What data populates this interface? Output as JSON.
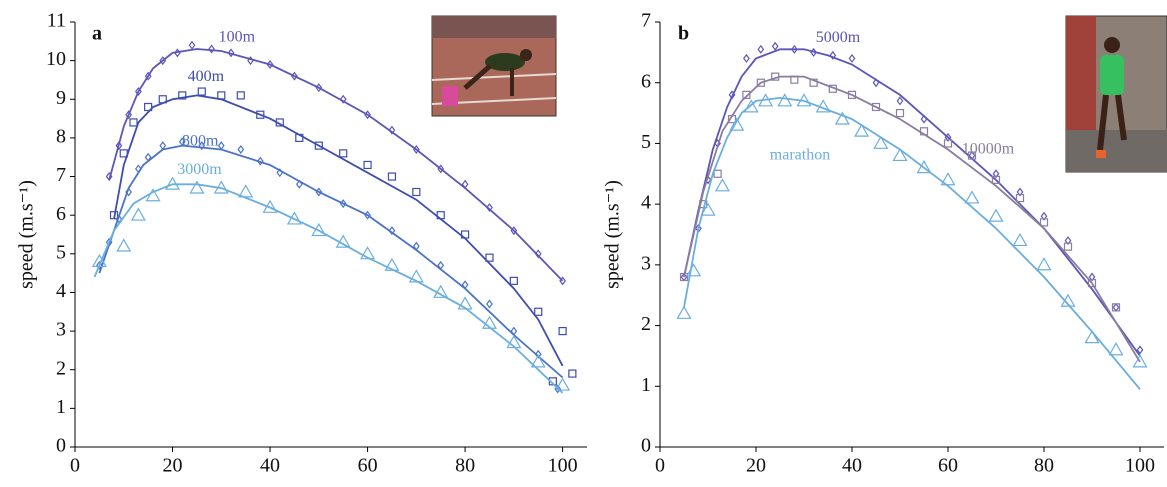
{
  "chart_data": [
    {
      "type": "scatter",
      "label": "a",
      "ylabel": "speed (m.s⁻¹)",
      "xlim": [
        0,
        105
      ],
      "xticks": [
        0,
        20,
        40,
        60,
        80,
        100
      ],
      "ylim": [
        0,
        11
      ],
      "yticks": [
        0,
        1,
        2,
        3,
        4,
        5,
        6,
        7,
        8,
        9,
        10,
        11
      ],
      "series": [
        {
          "name": "100m",
          "color": "#5b55b8",
          "marker": "diamond",
          "x": [
            7,
            9,
            11,
            13,
            15,
            18,
            21,
            24,
            28,
            32,
            36,
            40,
            45,
            50,
            55,
            60,
            65,
            70,
            75,
            80,
            85,
            90,
            95,
            100
          ],
          "values": [
            7.0,
            7.8,
            8.6,
            9.2,
            9.6,
            10.0,
            10.2,
            10.4,
            10.3,
            10.2,
            10.0,
            9.9,
            9.6,
            9.3,
            9.0,
            8.6,
            8.2,
            7.7,
            7.2,
            6.8,
            6.2,
            5.6,
            5.0,
            4.3
          ],
          "fit": {
            "x": [
              7,
              10,
              13,
              16,
              20,
              25,
              30,
              40,
              50,
              60,
              70,
              80,
              90,
              100
            ],
            "values": [
              6.9,
              8.3,
              9.2,
              9.8,
              10.2,
              10.3,
              10.25,
              9.9,
              9.3,
              8.6,
              7.7,
              6.7,
              5.6,
              4.3
            ]
          }
        },
        {
          "name": "400m",
          "color": "#3d4db0",
          "marker": "square",
          "x": [
            8,
            10,
            12,
            15,
            18,
            22,
            26,
            30,
            34,
            38,
            42,
            46,
            50,
            55,
            60,
            65,
            70,
            75,
            80,
            85,
            90,
            95,
            98,
            100,
            102
          ],
          "values": [
            6.0,
            7.6,
            8.4,
            8.8,
            9.0,
            9.1,
            9.2,
            9.1,
            9.1,
            8.6,
            8.4,
            8.0,
            7.8,
            7.6,
            7.3,
            7.0,
            6.6,
            6.0,
            5.5,
            4.9,
            4.3,
            3.5,
            1.7,
            3.0,
            1.9
          ],
          "fit": {
            "x": [
              8,
              10,
              13,
              16,
              20,
              25,
              30,
              40,
              50,
              60,
              70,
              80,
              90,
              95,
              100
            ],
            "values": [
              5.9,
              7.3,
              8.4,
              8.8,
              9.0,
              9.1,
              9.0,
              8.5,
              7.8,
              7.1,
              6.4,
              5.4,
              4.1,
              3.3,
              2.1
            ]
          }
        },
        {
          "name": "800m",
          "color": "#4a73c8",
          "marker": "diamond",
          "x": [
            5,
            7,
            9,
            11,
            13,
            15,
            18,
            22,
            26,
            30,
            34,
            38,
            42,
            46,
            50,
            55,
            60,
            65,
            70,
            75,
            80,
            85,
            90,
            95,
            99
          ],
          "values": [
            4.7,
            5.3,
            5.9,
            6.6,
            7.2,
            7.5,
            7.8,
            7.9,
            7.8,
            7.8,
            7.7,
            7.4,
            7.1,
            6.8,
            6.6,
            6.3,
            6.0,
            5.6,
            5.2,
            4.7,
            4.2,
            3.7,
            3.0,
            2.4,
            1.5
          ],
          "fit": {
            "x": [
              5,
              8,
              11,
              14,
              18,
              22,
              30,
              40,
              50,
              60,
              70,
              80,
              90,
              100
            ],
            "values": [
              4.5,
              5.6,
              6.7,
              7.3,
              7.7,
              7.8,
              7.7,
              7.3,
              6.6,
              6.0,
              5.1,
              4.1,
              2.9,
              1.8
            ]
          }
        },
        {
          "name": "3000m",
          "color": "#6aaee0",
          "marker": "triangle",
          "x": [
            5,
            10,
            13,
            16,
            20,
            25,
            30,
            35,
            40,
            45,
            50,
            55,
            60,
            65,
            70,
            75,
            80,
            85,
            90,
            95,
            100
          ],
          "values": [
            4.8,
            5.2,
            6.0,
            6.5,
            6.8,
            6.7,
            6.7,
            6.6,
            6.2,
            5.9,
            5.6,
            5.3,
            5.0,
            4.7,
            4.4,
            4.0,
            3.7,
            3.2,
            2.7,
            2.2,
            1.6
          ],
          "fit": {
            "x": [
              4,
              8,
              12,
              16,
              20,
              25,
              30,
              40,
              50,
              60,
              70,
              80,
              90,
              100
            ],
            "values": [
              4.4,
              5.6,
              6.3,
              6.6,
              6.8,
              6.8,
              6.7,
              6.2,
              5.6,
              4.9,
              4.3,
              3.6,
              2.6,
              1.4
            ]
          }
        }
      ]
    },
    {
      "type": "scatter",
      "label": "b",
      "ylabel": "speed (m.s⁻¹)",
      "xlim": [
        0,
        105
      ],
      "xticks": [
        0,
        20,
        40,
        60,
        80,
        100
      ],
      "ylim": [
        0,
        7
      ],
      "yticks": [
        0,
        1,
        2,
        3,
        4,
        5,
        6,
        7
      ],
      "series": [
        {
          "name": "5000m",
          "color": "#5b55b8",
          "marker": "diamond",
          "x": [
            5,
            8,
            10,
            12,
            15,
            18,
            21,
            24,
            28,
            32,
            36,
            40,
            45,
            50,
            55,
            60,
            65,
            70,
            75,
            80,
            85,
            90,
            95,
            100
          ],
          "values": [
            2.8,
            3.6,
            4.4,
            5.0,
            5.8,
            6.4,
            6.55,
            6.6,
            6.55,
            6.5,
            6.45,
            6.4,
            6.0,
            5.7,
            5.4,
            5.1,
            4.8,
            4.5,
            4.2,
            3.8,
            3.4,
            2.8,
            2.3,
            1.6
          ],
          "fit": {
            "x": [
              5,
              8,
              11,
              14,
              17,
              20,
              25,
              30,
              35,
              40,
              50,
              60,
              70,
              80,
              90,
              100
            ],
            "values": [
              2.8,
              3.9,
              4.9,
              5.6,
              6.1,
              6.4,
              6.55,
              6.55,
              6.45,
              6.3,
              5.8,
              5.1,
              4.4,
              3.6,
              2.6,
              1.5
            ]
          }
        },
        {
          "name": "10000m",
          "color": "#8a7da0",
          "marker": "square",
          "x": [
            5,
            9,
            12,
            15,
            18,
            21,
            24,
            28,
            32,
            36,
            40,
            45,
            50,
            55,
            60,
            65,
            70,
            75,
            80,
            85,
            90,
            95
          ],
          "values": [
            2.8,
            4.0,
            4.5,
            5.4,
            5.8,
            6.0,
            6.1,
            6.05,
            6.0,
            5.9,
            5.8,
            5.6,
            5.5,
            5.2,
            5.0,
            4.8,
            4.4,
            4.1,
            3.7,
            3.3,
            2.7,
            2.3
          ],
          "fit": {
            "x": [
              5,
              9,
              13,
              17,
              21,
              25,
              30,
              40,
              50,
              60,
              70,
              80,
              90,
              100
            ],
            "values": [
              2.8,
              4.2,
              5.2,
              5.7,
              6.0,
              6.1,
              6.1,
              5.8,
              5.4,
              4.9,
              4.3,
              3.6,
              2.7,
              1.4
            ]
          }
        },
        {
          "name": "marathon",
          "color": "#6aaee0",
          "marker": "triangle",
          "x": [
            5,
            7,
            10,
            13,
            16,
            19,
            22,
            26,
            30,
            34,
            38,
            42,
            46,
            50,
            55,
            60,
            65,
            70,
            75,
            80,
            85,
            90,
            95,
            100
          ],
          "values": [
            2.2,
            2.9,
            3.9,
            4.3,
            5.3,
            5.6,
            5.7,
            5.7,
            5.7,
            5.6,
            5.4,
            5.2,
            5.0,
            4.8,
            4.6,
            4.4,
            4.1,
            3.8,
            3.4,
            3.0,
            2.4,
            1.8,
            1.6,
            1.4
          ],
          "fit": {
            "x": [
              5,
              8,
              11,
              14,
              17,
              20,
              25,
              30,
              40,
              50,
              60,
              70,
              80,
              90,
              100
            ],
            "values": [
              2.3,
              3.6,
              4.5,
              5.1,
              5.5,
              5.7,
              5.75,
              5.7,
              5.4,
              4.9,
              4.3,
              3.6,
              2.8,
              1.9,
              0.95
            ]
          }
        }
      ]
    }
  ]
}
